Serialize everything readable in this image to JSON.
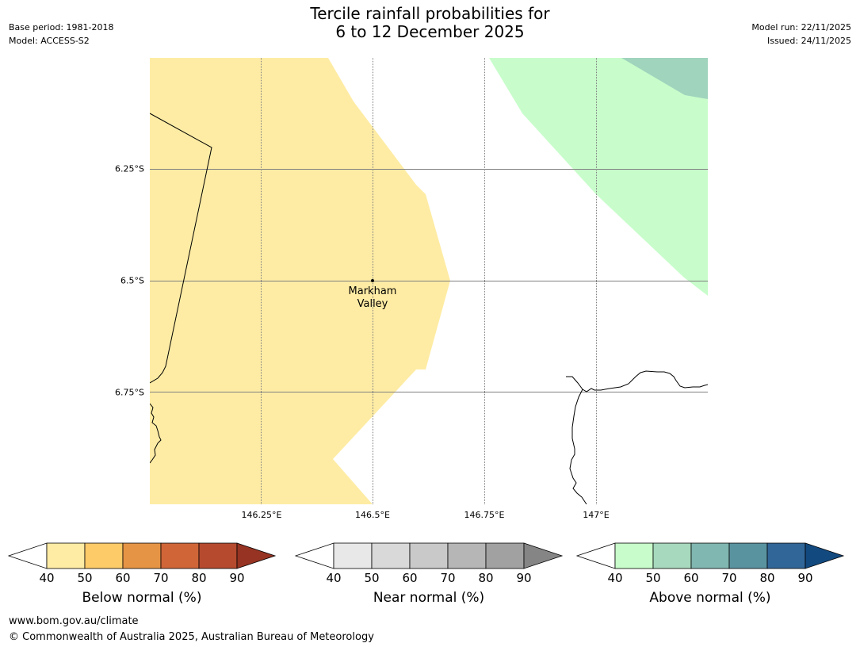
{
  "title": {
    "line1": "Tercile rainfall probabilities for",
    "line2": "6 to 12 December 2025"
  },
  "meta_left": {
    "base_period": "Base period: 1981-2018",
    "model": "Model: ACCESS-S2"
  },
  "meta_right": {
    "model_run": "Model run: 22/11/2025",
    "issued": "Issued: 24/11/2025"
  },
  "map": {
    "latitude_labels": [
      "6.25°S",
      "6.5°S",
      "6.75°S"
    ],
    "longitude_labels": [
      "146.25°E",
      "146.5°E",
      "146.75°E",
      "147°E"
    ],
    "place": {
      "line1": "Markham",
      "line2": "Valley"
    },
    "colors": {
      "below_40_50": "#feeca4",
      "above_40_50": "#c8fdcb",
      "above_50_60": "#a0d4bd",
      "coastline": "#000000",
      "gridline": "#808080"
    }
  },
  "colorbars": [
    {
      "title": "Below normal (%)",
      "ticks": [
        "40",
        "50",
        "60",
        "70",
        "80",
        "90"
      ],
      "colors": [
        "#feeca4",
        "#fecb69",
        "#e59446",
        "#d06638",
        "#b54a2e",
        "#963322"
      ]
    },
    {
      "title": "Near normal (%)",
      "ticks": [
        "40",
        "50",
        "60",
        "70",
        "80",
        "90"
      ],
      "colors": [
        "#e8e8e8",
        "#d9d9d9",
        "#c9c9c9",
        "#b6b6b6",
        "#a1a1a1",
        "#858585"
      ]
    },
    {
      "title": "Above normal (%)",
      "ticks": [
        "40",
        "50",
        "60",
        "70",
        "80",
        "90"
      ],
      "colors": [
        "#c8fdcb",
        "#a6d9bd",
        "#80b7b0",
        "#5a93a0",
        "#316698",
        "#124a80"
      ]
    }
  ],
  "footer": {
    "url": "www.bom.gov.au/climate",
    "copyright": "© Commonwealth of Australia 2025, Australian Bureau of Meteorology"
  }
}
